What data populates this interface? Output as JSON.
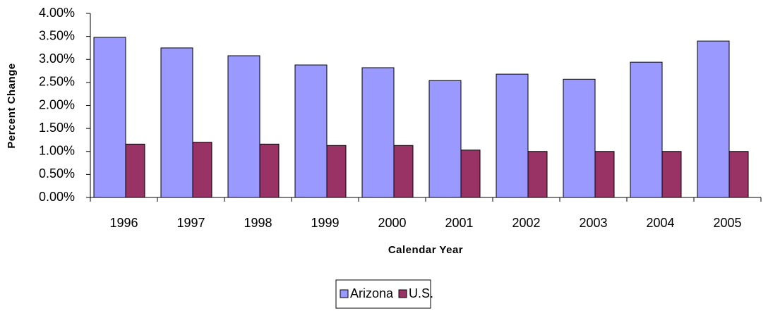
{
  "chart_data": {
    "type": "bar",
    "x_label": "Calendar Year",
    "y_label": "Percent Change",
    "categories": [
      "1996",
      "1997",
      "1998",
      "1999",
      "2000",
      "2001",
      "2002",
      "2003",
      "2004",
      "2005"
    ],
    "series": [
      {
        "name": "Arizona",
        "color": "#9999ff",
        "values": [
          3.48,
          3.25,
          3.08,
          2.88,
          2.82,
          2.54,
          2.68,
          2.57,
          2.94,
          3.4
        ]
      },
      {
        "name": "U.S.",
        "color": "#993366",
        "values": [
          1.16,
          1.2,
          1.16,
          1.13,
          1.13,
          1.03,
          1.0,
          1.0,
          1.0,
          1.0
        ]
      }
    ],
    "ylim": [
      0,
      4
    ],
    "yticks": [
      {
        "value": 0,
        "label": "0.00%"
      },
      {
        "value": 0.5,
        "label": "0.50%"
      },
      {
        "value": 1,
        "label": "1.00%"
      },
      {
        "value": 1.5,
        "label": "1.50%"
      },
      {
        "value": 2,
        "label": "2.00%"
      },
      {
        "value": 2.5,
        "label": "2.50%"
      },
      {
        "value": 3,
        "label": "3.00%"
      },
      {
        "value": 3.5,
        "label": "3.50%"
      },
      {
        "value": 4,
        "label": "4.00%"
      }
    ],
    "grid": false,
    "legend": "bottom"
  }
}
